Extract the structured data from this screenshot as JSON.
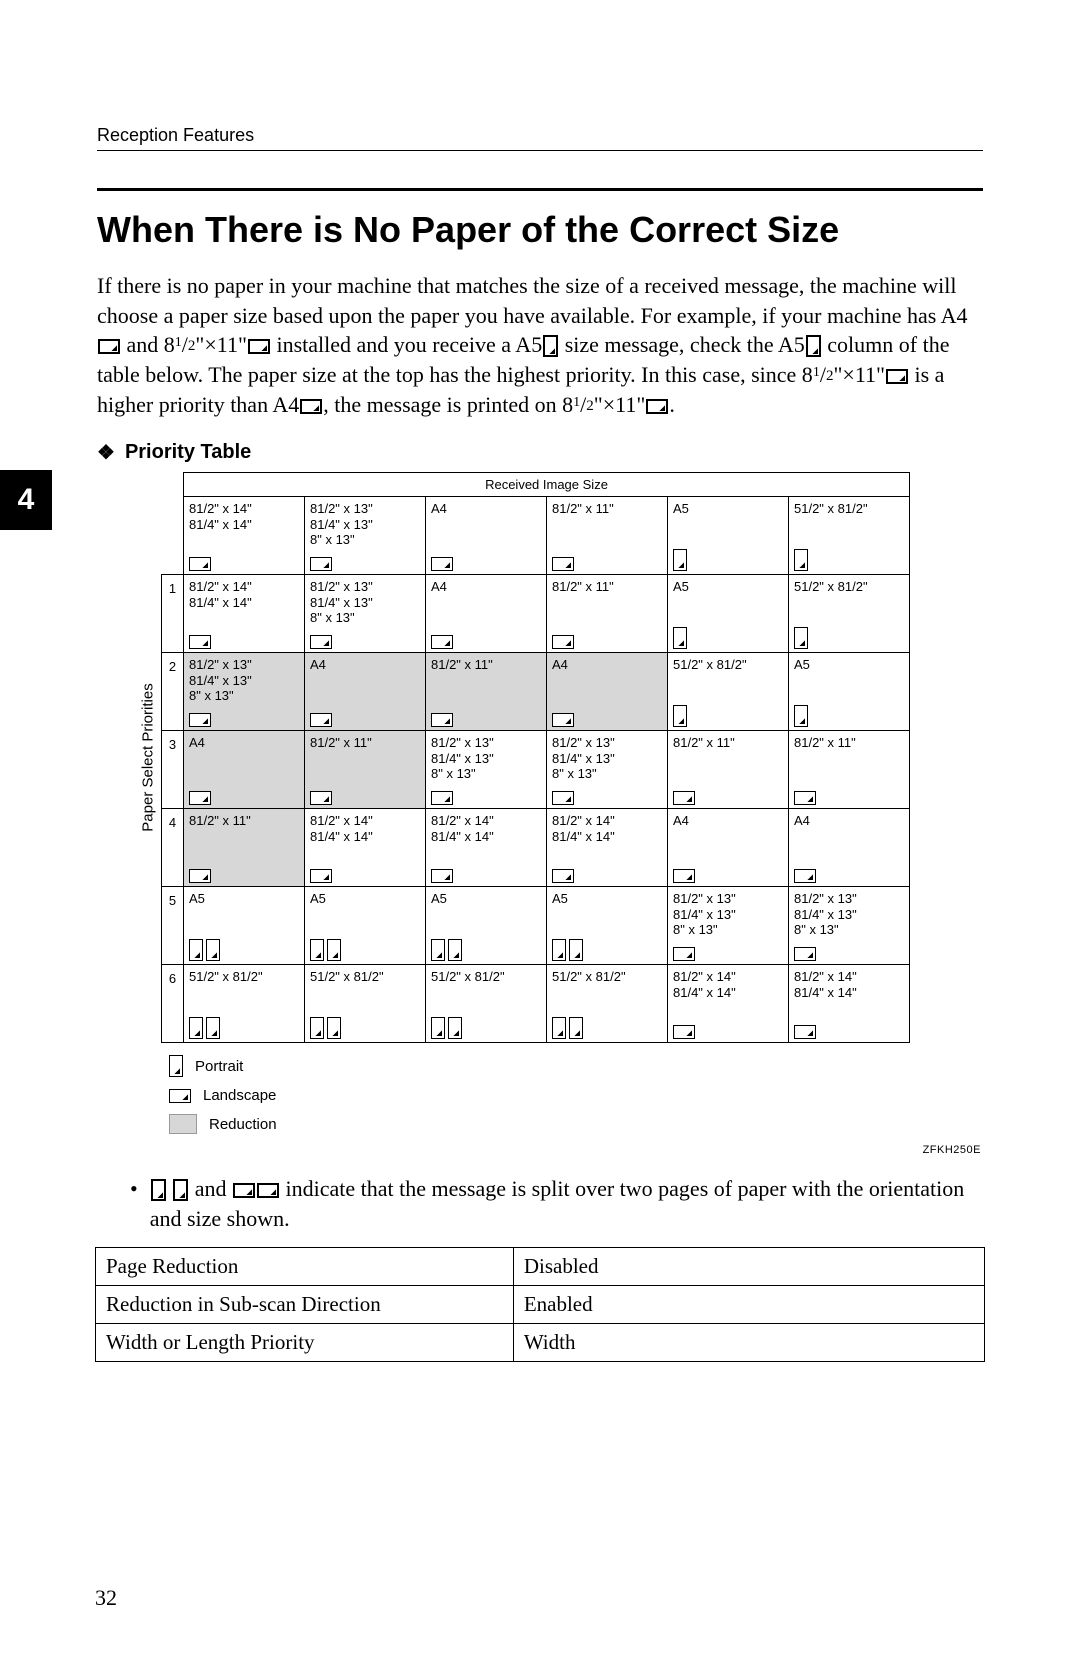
{
  "page": {
    "running_head": "Reception Features",
    "title": "When There is No Paper of the Correct Size",
    "chapter_number": "4",
    "page_number": "32",
    "figure_code": "ZFKH250E"
  },
  "body": {
    "p1a": "If there is no paper in your machine that matches the size of a received message, the machine will choose a paper size based upon the paper you have available. For example, if your machine has A4",
    "p1b": " and 8",
    "p1c": "×11\"",
    "p1d": " installed and you receive a A5",
    "p1e": " size message, check the A5",
    "p1f": " column of the table below. The paper size at the top has the highest priority. In this case, since 8",
    "p1g": "×11\"",
    "p1h": " is a higher priority than A4",
    "p1i": ", the message is printed on 8",
    "p1j": "×11\"",
    "p1k": ".",
    "frac_sup": "1",
    "frac_sub": "2"
  },
  "subhead": {
    "label": "Priority Table"
  },
  "priority_table": {
    "top_header": "Received Image Size",
    "side_header": "Paper Select Priorities",
    "columns": [
      {
        "sizes": [
          "81/2\" x 14\"",
          "81/4\" x 14\""
        ],
        "icons": [
          "land"
        ]
      },
      {
        "sizes": [
          "81/2\" x 13\"",
          "81/4\" x 13\"",
          "8\" x 13\""
        ],
        "icons": [
          "land"
        ]
      },
      {
        "sizes": [
          "A4"
        ],
        "icons": [
          "land"
        ]
      },
      {
        "sizes": [
          "81/2\" x 11\""
        ],
        "icons": [
          "land"
        ]
      },
      {
        "sizes": [
          "A5"
        ],
        "icons": [
          "port"
        ]
      },
      {
        "sizes": [
          "51/2\" x 81/2\""
        ],
        "icons": [
          "port"
        ]
      }
    ],
    "rows": [
      {
        "n": "1",
        "cells": [
          {
            "sizes": [
              "81/2\" x 14\"",
              "81/4\" x 14\""
            ],
            "icons": [
              "land"
            ],
            "shaded": false
          },
          {
            "sizes": [
              "81/2\" x 13\"",
              "81/4\" x 13\"",
              "8\" x 13\""
            ],
            "icons": [
              "land"
            ],
            "shaded": false
          },
          {
            "sizes": [
              "A4"
            ],
            "icons": [
              "land"
            ],
            "shaded": false
          },
          {
            "sizes": [
              "81/2\" x 11\""
            ],
            "icons": [
              "land"
            ],
            "shaded": false
          },
          {
            "sizes": [
              "A5"
            ],
            "icons": [
              "port"
            ],
            "shaded": false
          },
          {
            "sizes": [
              "51/2\" x 81/2\""
            ],
            "icons": [
              "port"
            ],
            "shaded": false
          }
        ]
      },
      {
        "n": "2",
        "cells": [
          {
            "sizes": [
              "81/2\" x 13\"",
              "81/4\" x 13\"",
              "8\" x 13\""
            ],
            "icons": [
              "land"
            ],
            "shaded": true
          },
          {
            "sizes": [
              "A4"
            ],
            "icons": [
              "land"
            ],
            "shaded": true
          },
          {
            "sizes": [
              "81/2\" x 11\""
            ],
            "icons": [
              "land"
            ],
            "shaded": true
          },
          {
            "sizes": [
              "A4"
            ],
            "icons": [
              "land"
            ],
            "shaded": true
          },
          {
            "sizes": [
              "51/2\" x 81/2\""
            ],
            "icons": [
              "port"
            ],
            "shaded": false
          },
          {
            "sizes": [
              "A5"
            ],
            "icons": [
              "port"
            ],
            "shaded": false
          }
        ]
      },
      {
        "n": "3",
        "cells": [
          {
            "sizes": [
              "A4"
            ],
            "icons": [
              "land"
            ],
            "shaded": true
          },
          {
            "sizes": [
              "81/2\" x 11\""
            ],
            "icons": [
              "land"
            ],
            "shaded": true
          },
          {
            "sizes": [
              "81/2\" x 13\"",
              "81/4\" x 13\"",
              "8\" x 13\""
            ],
            "icons": [
              "land"
            ],
            "shaded": false
          },
          {
            "sizes": [
              "81/2\" x 13\"",
              "81/4\" x 13\"",
              "8\" x 13\""
            ],
            "icons": [
              "land"
            ],
            "shaded": false
          },
          {
            "sizes": [
              "81/2\" x 11\""
            ],
            "icons": [
              "land"
            ],
            "shaded": false
          },
          {
            "sizes": [
              "81/2\" x 11\""
            ],
            "icons": [
              "land"
            ],
            "shaded": false
          }
        ]
      },
      {
        "n": "4",
        "cells": [
          {
            "sizes": [
              "81/2\" x 11\""
            ],
            "icons": [
              "land"
            ],
            "shaded": true
          },
          {
            "sizes": [
              "81/2\" x 14\"",
              "81/4\" x 14\""
            ],
            "icons": [
              "land"
            ],
            "shaded": false
          },
          {
            "sizes": [
              "81/2\" x 14\"",
              "81/4\" x 14\""
            ],
            "icons": [
              "land"
            ],
            "shaded": false
          },
          {
            "sizes": [
              "81/2\" x 14\"",
              "81/4\" x 14\""
            ],
            "icons": [
              "land"
            ],
            "shaded": false
          },
          {
            "sizes": [
              "A4"
            ],
            "icons": [
              "land"
            ],
            "shaded": false
          },
          {
            "sizes": [
              "A4"
            ],
            "icons": [
              "land"
            ],
            "shaded": false
          }
        ]
      },
      {
        "n": "5",
        "cells": [
          {
            "sizes": [
              "A5"
            ],
            "icons": [
              "port",
              "port"
            ],
            "shaded": false
          },
          {
            "sizes": [
              "A5"
            ],
            "icons": [
              "port",
              "port"
            ],
            "shaded": false
          },
          {
            "sizes": [
              "A5"
            ],
            "icons": [
              "port",
              "port"
            ],
            "shaded": false
          },
          {
            "sizes": [
              "A5"
            ],
            "icons": [
              "port",
              "port"
            ],
            "shaded": false
          },
          {
            "sizes": [
              "81/2\" x 13\"",
              "81/4\" x 13\"",
              "8\" x 13\""
            ],
            "icons": [
              "land"
            ],
            "shaded": false
          },
          {
            "sizes": [
              "81/2\" x 13\"",
              "81/4\" x 13\"",
              "8\" x 13\""
            ],
            "icons": [
              "land"
            ],
            "shaded": false
          }
        ]
      },
      {
        "n": "6",
        "cells": [
          {
            "sizes": [
              "51/2\" x 81/2\""
            ],
            "icons": [
              "port",
              "port"
            ],
            "shaded": false
          },
          {
            "sizes": [
              "51/2\" x 81/2\""
            ],
            "icons": [
              "port",
              "port"
            ],
            "shaded": false
          },
          {
            "sizes": [
              "51/2\" x 81/2\""
            ],
            "icons": [
              "port",
              "port"
            ],
            "shaded": false
          },
          {
            "sizes": [
              "51/2\" x 81/2\""
            ],
            "icons": [
              "port",
              "port"
            ],
            "shaded": false
          },
          {
            "sizes": [
              "81/2\" x 14\"",
              "81/4\" x 14\""
            ],
            "icons": [
              "land"
            ],
            "shaded": false
          },
          {
            "sizes": [
              "81/2\" x 14\"",
              "81/4\" x 14\""
            ],
            "icons": [
              "land"
            ],
            "shaded": false
          }
        ]
      }
    ]
  },
  "legend": {
    "portrait": "Portrait",
    "landscape": "Landscape",
    "reduction": "Reduction"
  },
  "bullet": {
    "a": " and ",
    "b": " indicate that the message is split over two pages of paper with the orientation and size shown."
  },
  "settings": {
    "rows": [
      {
        "label": "Page Reduction",
        "value": "Disabled"
      },
      {
        "label": "Reduction in Sub-scan Direction",
        "value": "Enabled"
      },
      {
        "label": "Width or Length Priority",
        "value": "Width"
      }
    ]
  }
}
